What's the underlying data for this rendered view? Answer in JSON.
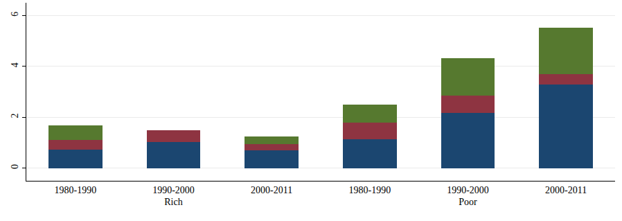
{
  "chart_data": {
    "type": "bar",
    "stacked": true,
    "grid": true,
    "categories": [
      "1980-1990",
      "1990-2000",
      "2000-2011",
      "1980-1990",
      "1990-2000",
      "2000-2011"
    ],
    "groups": [
      "Rich",
      "Rich",
      "Rich",
      "Poor",
      "Poor",
      "Poor"
    ],
    "series": [
      {
        "color": "#1b4670",
        "values": [
          0.72,
          1.03,
          0.69,
          1.14,
          2.17,
          3.29
        ]
      },
      {
        "color": "#8e3441",
        "values": [
          0.39,
          0.46,
          0.26,
          0.66,
          0.67,
          0.4
        ]
      },
      {
        "color": "#56792f",
        "values": [
          0.56,
          0,
          0.3,
          0.69,
          1.48,
          1.83
        ]
      }
    ],
    "ylim": [
      -0.5,
      6.5
    ],
    "yticks": [
      0,
      2,
      4,
      6
    ]
  }
}
